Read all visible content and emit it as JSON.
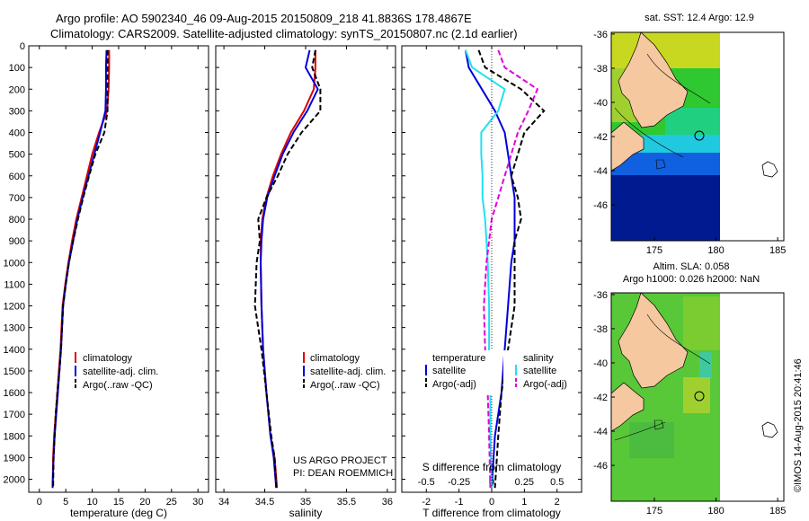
{
  "header": {
    "title_line1": "Argo profile: AO 5902340_46 09-Aug-2015 20150809_218 41.8836S 178.4867E",
    "title_line2": "Climatology: CARS2009. Satellite-adjusted climatology: synTS_20150807.nc (2.1d earlier)"
  },
  "credit": {
    "project": "US ARGO PROJECT",
    "pi": "PI: DEAN ROEMMICH",
    "stamp": "©IMOS 14-Aug-2015 20:41:46"
  },
  "colors": {
    "climatology": "#dd0000",
    "satellite": "#0000dd",
    "argo": "#000000",
    "sat_salinity": "#22e0f0",
    "argo_salinity": "#e000e0",
    "land": "#f5c8a0"
  },
  "map_titles": {
    "sst": "sat. SST: 12.4  Argo: 12.9",
    "sla_line1": "Altim. SLA: 0.058",
    "sla_line2": "Argo h1000: 0.026 h2000: NaN"
  },
  "chart_data": [
    {
      "type": "line",
      "panel": "temperature",
      "xlabel": "temperature (deg C)",
      "xlim": [
        -2,
        32
      ],
      "xticks": [
        0,
        5,
        10,
        15,
        20,
        25,
        30
      ],
      "xtick_labels": [
        "0",
        "5",
        "10",
        "15",
        "20",
        "25",
        "30"
      ],
      "ylim": [
        0,
        2060
      ],
      "yticks": [
        0,
        100,
        200,
        300,
        400,
        500,
        600,
        700,
        800,
        900,
        1000,
        1100,
        1200,
        1300,
        1400,
        1500,
        1600,
        1700,
        1800,
        1900,
        2000
      ],
      "ytick_labels": [
        "0",
        "100",
        "200",
        "300",
        "400",
        "500",
        "600",
        "700",
        "800",
        "900",
        "1000",
        "1100",
        "1200",
        "1300",
        "1400",
        "1500",
        "1600",
        "1700",
        "1800",
        "1900",
        "2000"
      ],
      "legend": [
        "climatology",
        "satellite-adj. clim.",
        "Argo(..raw -QC)"
      ],
      "series": [
        {
          "name": "climatology",
          "color": "#dd0000",
          "dash": false,
          "x": [
            13.2,
            13.2,
            13.1,
            12.8,
            11.3,
            10.0,
            9.0,
            8.0,
            7.0,
            6.2,
            5.5,
            4.9,
            4.4,
            4.0,
            3.7,
            3.4,
            3.1,
            2.8,
            2.6,
            2.5
          ],
          "y": [
            20,
            100,
            200,
            300,
            400,
            500,
            600,
            700,
            800,
            900,
            1000,
            1100,
            1200,
            1400,
            1500,
            1600,
            1700,
            1800,
            1900,
            2040
          ]
        },
        {
          "name": "satellite-adj. clim.",
          "color": "#0000dd",
          "dash": false,
          "x": [
            12.7,
            12.6,
            12.6,
            12.5,
            11.5,
            10.4,
            9.3,
            8.2,
            7.2,
            6.4,
            5.6,
            5.0,
            4.5,
            4.1,
            3.8,
            3.5,
            3.2,
            2.9,
            2.7,
            2.5
          ],
          "y": [
            20,
            100,
            200,
            300,
            400,
            500,
            600,
            700,
            800,
            900,
            1000,
            1100,
            1200,
            1400,
            1500,
            1600,
            1700,
            1800,
            1900,
            2040
          ]
        },
        {
          "name": "Argo(..raw -QC)",
          "color": "#000000",
          "dash": true,
          "x": [
            12.9,
            12.9,
            12.9,
            12.9,
            12.3,
            10.6,
            9.4,
            8.3,
            7.3,
            6.4,
            5.6,
            5.0,
            4.5,
            4.1,
            3.8,
            3.4,
            3.1,
            2.9,
            2.7,
            2.6
          ],
          "y": [
            20,
            100,
            200,
            300,
            400,
            500,
            600,
            700,
            800,
            900,
            1000,
            1100,
            1200,
            1400,
            1500,
            1600,
            1700,
            1800,
            1900,
            2040
          ]
        }
      ]
    },
    {
      "type": "line",
      "panel": "salinity",
      "xlabel": "salinity",
      "xlim": [
        33.9,
        36.1
      ],
      "xticks": [
        34,
        34.5,
        35,
        35.5,
        36
      ],
      "xtick_labels": [
        "34",
        "34.5",
        "35",
        "35.5",
        "36"
      ],
      "ylim": [
        0,
        2060
      ],
      "legend": [
        "climatology",
        "satellite-adj. clim.",
        "Argo(..raw -QC)"
      ],
      "series": [
        {
          "name": "climatology",
          "color": "#dd0000",
          "dash": false,
          "x": [
            35.12,
            35.12,
            35.1,
            34.98,
            34.82,
            34.7,
            34.6,
            34.52,
            34.47,
            34.45,
            34.45,
            34.46,
            34.48,
            34.52,
            34.57,
            34.62,
            34.65
          ],
          "y": [
            20,
            100,
            200,
            300,
            400,
            500,
            600,
            700,
            800,
            900,
            1000,
            1200,
            1400,
            1600,
            1800,
            1900,
            2040
          ]
        },
        {
          "name": "satellite-adj. clim.",
          "color": "#0000dd",
          "dash": false,
          "x": [
            35.05,
            35.0,
            35.15,
            35.02,
            34.85,
            34.72,
            34.62,
            34.53,
            34.48,
            34.46,
            34.45,
            34.46,
            34.48,
            34.52,
            34.57,
            34.61,
            34.64
          ],
          "y": [
            20,
            100,
            200,
            300,
            400,
            500,
            600,
            700,
            800,
            900,
            1000,
            1200,
            1400,
            1600,
            1800,
            1900,
            2040
          ]
        },
        {
          "name": "Argo(..raw -QC)",
          "color": "#000000",
          "dash": true,
          "x": [
            35.12,
            35.08,
            35.18,
            35.18,
            34.95,
            34.78,
            34.66,
            34.52,
            34.42,
            34.44,
            34.4,
            34.38,
            34.46,
            34.52,
            34.58,
            34.62,
            34.64
          ],
          "y": [
            20,
            100,
            200,
            300,
            400,
            500,
            600,
            700,
            800,
            900,
            1000,
            1200,
            1400,
            1600,
            1800,
            1900,
            2040
          ]
        }
      ]
    },
    {
      "type": "line",
      "panel": "difference",
      "xlabel": "T difference from climatology",
      "xlabel_top": "S difference from climatology",
      "xlim": [
        -2.75,
        2.75
      ],
      "xticks": [
        -2,
        -1,
        0,
        1,
        2
      ],
      "xtick_labels": [
        "-2",
        "-1",
        "0",
        "1",
        "2"
      ],
      "s_xlim": [
        -0.6875,
        0.6875
      ],
      "s_xticks": [
        -0.5,
        -0.25,
        0,
        0.25,
        0.5
      ],
      "s_xtick_labels": [
        "-0.5",
        "-0.25",
        "0",
        "0.25",
        "0.5"
      ],
      "ylim": [
        0,
        2060
      ],
      "legend_headers": [
        "temperature",
        "salinity"
      ],
      "legend": [
        "satellite",
        "Argo(-adj)",
        "satellite",
        "Argo(-adj)"
      ],
      "series": [
        {
          "name": "satellite",
          "group": "temperature",
          "color": "#0000dd",
          "dash": false,
          "x": [
            -0.8,
            -0.7,
            -0.3,
            0.1,
            0.4,
            0.5,
            0.6,
            0.7,
            0.7,
            0.7,
            0.6,
            0.5,
            0.4,
            0.3,
            0.1,
            0.0
          ],
          "y": [
            20,
            100,
            200,
            300,
            400,
            500,
            600,
            700,
            800,
            900,
            1000,
            1200,
            1400,
            1600,
            1800,
            2040
          ]
        },
        {
          "name": "Argo(-adj)",
          "group": "temperature",
          "color": "#000000",
          "dash": true,
          "x": [
            -0.4,
            -0.2,
            0.9,
            1.6,
            1.0,
            0.8,
            0.6,
            0.8,
            0.9,
            0.7,
            0.7,
            0.7,
            0.5,
            0.3,
            0.2,
            0.1
          ],
          "y": [
            20,
            100,
            200,
            300,
            400,
            500,
            600,
            700,
            800,
            900,
            1000,
            1200,
            1400,
            1600,
            1800,
            2040
          ]
        },
        {
          "name": "satellite",
          "group": "salinity",
          "color": "#22e0f0",
          "dash": false,
          "x": [
            -0.2,
            -0.15,
            0.1,
            0.05,
            -0.08,
            -0.08,
            -0.07,
            -0.07,
            -0.05,
            -0.04,
            -0.03,
            -0.02,
            -0.02,
            -0.01,
            -0.01,
            0.0
          ],
          "y": [
            20,
            100,
            200,
            300,
            400,
            500,
            600,
            700,
            800,
            900,
            1000,
            1200,
            1400,
            1600,
            1800,
            2040
          ]
        },
        {
          "name": "Argo(-adj)",
          "group": "salinity",
          "color": "#e000e0",
          "dash": true,
          "x": [
            0.05,
            0.1,
            0.35,
            0.28,
            0.2,
            0.15,
            0.1,
            0.05,
            0.0,
            -0.02,
            -0.04,
            -0.06,
            -0.05,
            -0.03,
            -0.02,
            -0.01
          ],
          "y": [
            20,
            100,
            200,
            300,
            400,
            500,
            600,
            700,
            800,
            900,
            1000,
            1200,
            1400,
            1600,
            1800,
            2040
          ]
        }
      ]
    }
  ],
  "maps": [
    {
      "panel": "sst",
      "xticks": [
        175,
        180,
        185
      ],
      "xtick_labels": [
        "175",
        "180",
        "185"
      ],
      "yticks": [
        -36,
        -38,
        -40,
        -42,
        -44,
        -46
      ],
      "ytick_labels": [
        "-36",
        "-38",
        "-40",
        "-42",
        "-44",
        "-46"
      ],
      "float_marker": [
        178.4867,
        -41.8836
      ]
    },
    {
      "panel": "sla",
      "xticks": [
        175,
        180,
        185
      ],
      "xtick_labels": [
        "175",
        "180",
        "185"
      ],
      "yticks": [
        -36,
        -38,
        -40,
        -42,
        -44,
        -46
      ],
      "ytick_labels": [
        "-36",
        "-38",
        "-40",
        "-42",
        "-44",
        "-46"
      ],
      "float_marker": [
        178.4867,
        -41.8836
      ]
    }
  ]
}
